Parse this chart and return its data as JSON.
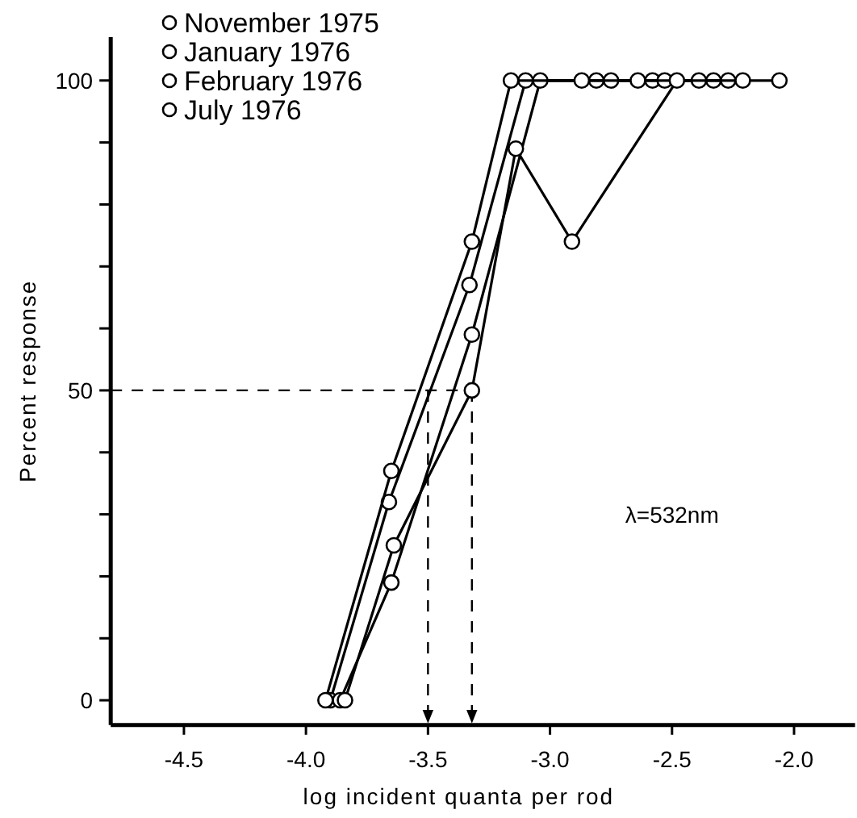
{
  "chart_data": {
    "type": "line",
    "xlabel": "log incident  quanta per rod",
    "ylabel": "Percent response",
    "xlim": [
      -4.8,
      -1.75
    ],
    "ylim": [
      -4,
      107
    ],
    "xticks": [
      -4.5,
      {
        "value": -4,
        "label": "-4.0"
      },
      -3.5,
      {
        "value": -3,
        "label": "-3.0"
      },
      -2.5,
      {
        "value": -2,
        "label": "-2.0"
      }
    ],
    "yticks": [
      0,
      {
        "value": 10,
        "label": null
      },
      {
        "value": 20,
        "label": null
      },
      {
        "value": 30,
        "label": null
      },
      {
        "value": 40,
        "label": null
      },
      50,
      {
        "value": 60,
        "label": null
      },
      {
        "value": 70,
        "label": null
      },
      {
        "value": 80,
        "label": null
      },
      {
        "value": 90,
        "label": null
      },
      100
    ],
    "marker": "circle",
    "legend": "top left",
    "grid": false,
    "series": [
      {
        "name": "November 1975",
        "color": "#000000",
        "x": [
          -3.9,
          -3.66,
          -3.33,
          -3.1,
          -2.81,
          -2.58,
          -2.33
        ],
        "values": [
          0,
          32,
          67,
          100,
          100,
          100,
          100
        ]
      },
      {
        "name": "January 1976",
        "color": "#000000",
        "x": [
          -3.86,
          -3.65,
          -3.32,
          -3.04,
          -2.75,
          -2.53,
          -2.27
        ],
        "values": [
          0,
          19,
          59,
          100,
          100,
          100,
          100
        ]
      },
      {
        "name": "February 1976",
        "color": "#000000",
        "x": [
          -3.92,
          -3.65,
          -3.32,
          -3.16,
          -2.87,
          -2.64,
          -2.39
        ],
        "values": [
          0,
          37,
          74,
          100,
          100,
          100,
          100
        ]
      },
      {
        "name": "July 1976",
        "color": "#000000",
        "x": [
          -3.84,
          -3.64,
          -3.32,
          -3.14,
          -2.91,
          -2.48,
          -2.21,
          -2.06
        ],
        "values": [
          0,
          25,
          50,
          89,
          74,
          100,
          100,
          100
        ]
      }
    ],
    "ref_lines": [
      {
        "axis": "y",
        "value": 50,
        "line_style": "dashed"
      },
      {
        "axis": "x",
        "value": -3.5,
        "line_style": "dashed"
      },
      {
        "axis": "x",
        "value": -3.32,
        "line_style": "dashed"
      }
    ],
    "annotations": [
      "λ=532nm"
    ]
  }
}
